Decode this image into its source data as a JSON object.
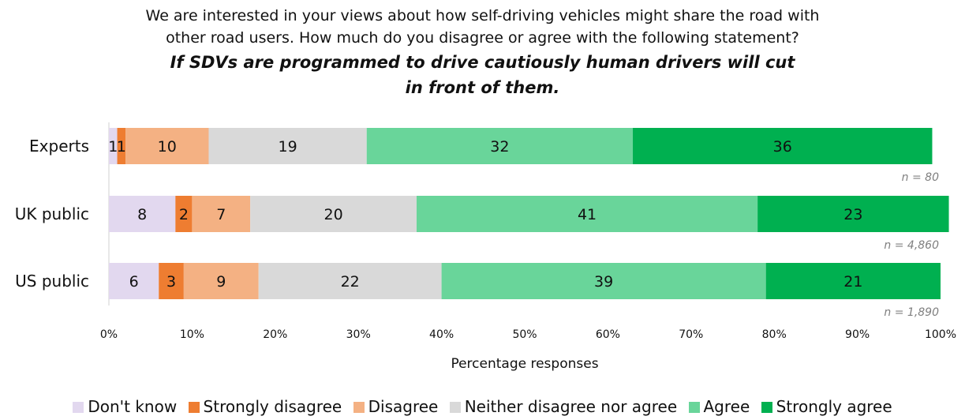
{
  "title": {
    "line1": "We are interested in your views about how self-driving vehicles might share the road with",
    "line2": "other road users. How much do you disagree or agree with the following statement?"
  },
  "statement": {
    "line1": "If SDVs are programmed to drive cautiously human drivers will cut",
    "line2": "in front of them."
  },
  "chart_data": {
    "type": "bar",
    "orientation": "horizontal",
    "stacked": true,
    "categories": [
      "Experts",
      "UK public",
      "US public"
    ],
    "sample_sizes": [
      "n = 80",
      "n = 4,860",
      "n = 1,890"
    ],
    "series": [
      {
        "name": "Don't know",
        "color": "#e2d8ef",
        "values": [
          1,
          8,
          6
        ]
      },
      {
        "name": "Strongly disagree",
        "color": "#ee7d31",
        "values": [
          1,
          2,
          3
        ]
      },
      {
        "name": "Disagree",
        "color": "#f4b183",
        "values": [
          10,
          7,
          9
        ]
      },
      {
        "name": "Neither disagree nor agree",
        "color": "#d9d9d9",
        "values": [
          19,
          20,
          22
        ]
      },
      {
        "name": "Agree",
        "color": "#69d59a",
        "values": [
          32,
          41,
          39
        ]
      },
      {
        "name": "Strongly agree",
        "color": "#00b050",
        "values": [
          36,
          23,
          21
        ]
      }
    ],
    "xlabel": "Percentage responses",
    "xlim": [
      0,
      100
    ],
    "xticks": [
      "0%",
      "10%",
      "20%",
      "30%",
      "40%",
      "50%",
      "60%",
      "70%",
      "80%",
      "90%",
      "100%"
    ],
    "grid": false,
    "legend_position": "bottom"
  }
}
